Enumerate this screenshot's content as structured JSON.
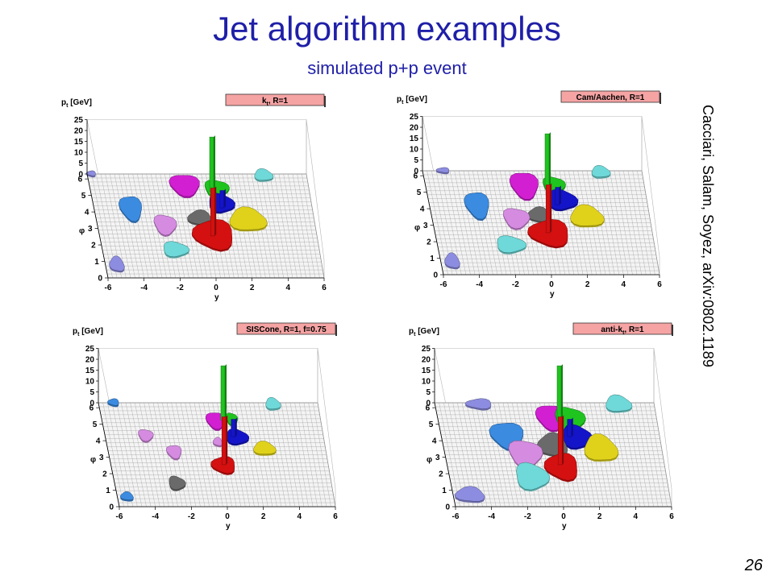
{
  "slide": {
    "title": "Jet algorithm examples",
    "subtitle": "simulated p+p event",
    "citation": "Cacciari, Salam, Soyez, arXiv:0802.1189",
    "page_number": "26"
  },
  "colors": {
    "title": "#1f1fa8",
    "label_box": "#f5a3a3",
    "grid": "#9a9a9a",
    "jets": {
      "magenta": "#d21fd2",
      "green": "#1fc41f",
      "blue": "#1414c8",
      "yellow": "#e0d21a",
      "red": "#d41010",
      "gray": "#6a6a6a",
      "lightblue": "#3b8be0",
      "violet": "#d48be0",
      "cyan": "#6fd8d8",
      "lavender": "#8c8ce0"
    }
  },
  "chart_data": [
    {
      "type": "lego",
      "label": "k",
      "label_sub": "t",
      "label_suffix": ", R=1",
      "xlabel": "y",
      "ylabel": "φ",
      "zlabel": "p",
      "zlabel_sub": "t",
      "zlabel_unit": " [GeV]",
      "x_ticks": [
        "-6",
        "-4",
        "-2",
        "0",
        "2",
        "4",
        "6"
      ],
      "y_ticks": [
        "0",
        "1",
        "2",
        "3",
        "4",
        "5",
        "6"
      ],
      "z_ticks": [
        "0",
        "5",
        "10",
        "15",
        "20",
        "25"
      ],
      "xlim": [
        -6,
        6
      ],
      "ylim": [
        0,
        6.3
      ],
      "zlim": [
        0,
        25
      ],
      "jets": [
        {
          "color": "magenta",
          "y": -0.8,
          "phi": 5.4,
          "w": 1.6,
          "h": 1.3
        },
        {
          "color": "green",
          "y": 0.9,
          "phi": 5.2,
          "w": 1.3,
          "h": 1.0
        },
        {
          "color": "blue",
          "y": 1.0,
          "phi": 4.3,
          "w": 1.4,
          "h": 1.1
        },
        {
          "color": "yellow",
          "y": 2.3,
          "phi": 3.3,
          "w": 2.0,
          "h": 1.4
        },
        {
          "color": "gray",
          "y": -0.3,
          "phi": 3.4,
          "w": 1.3,
          "h": 0.9
        },
        {
          "color": "red",
          "y": 0.3,
          "phi": 2.4,
          "w": 2.2,
          "h": 1.8
        },
        {
          "color": "lightblue",
          "y": -4.0,
          "phi": 4.0,
          "w": 1.2,
          "h": 1.5
        },
        {
          "color": "violet",
          "y": -2.3,
          "phi": 3.0,
          "w": 1.2,
          "h": 1.2
        },
        {
          "color": "cyan",
          "y": -2.0,
          "phi": 1.5,
          "w": 1.4,
          "h": 0.9
        },
        {
          "color": "cyan",
          "y": 3.6,
          "phi": 6.0,
          "w": 1.0,
          "h": 0.7
        },
        {
          "color": "lavender",
          "y": -5.4,
          "phi": 0.6,
          "w": 0.8,
          "h": 0.9
        },
        {
          "color": "lavender",
          "y": -5.8,
          "phi": 6.1,
          "w": 0.5,
          "h": 0.3
        }
      ],
      "towers": [
        {
          "color": "green",
          "y": 0.6,
          "phi": 5.0,
          "pt": 25
        },
        {
          "color": "red",
          "y": 0.2,
          "phi": 2.3,
          "pt": 22
        },
        {
          "color": "blue",
          "y": 1.0,
          "phi": 4.0,
          "pt": 8
        }
      ]
    },
    {
      "type": "lego",
      "label": "Cam/Aachen, R=1",
      "label_sub": "",
      "label_suffix": "",
      "xlabel": "y",
      "ylabel": "φ",
      "zlabel": "p",
      "zlabel_sub": "t",
      "zlabel_unit": " [GeV]",
      "x_ticks": [
        "-6",
        "-4",
        "-2",
        "0",
        "2",
        "4",
        "6"
      ],
      "y_ticks": [
        "0",
        "1",
        "2",
        "3",
        "4",
        "5",
        "6"
      ],
      "z_ticks": [
        "0",
        "5",
        "10",
        "15",
        "20",
        "25"
      ],
      "xlim": [
        -6,
        6
      ],
      "ylim": [
        0,
        6.3
      ],
      "zlim": [
        0,
        25
      ],
      "jets": [
        {
          "color": "magenta",
          "y": -0.6,
          "phi": 5.2,
          "w": 1.5,
          "h": 1.6
        },
        {
          "color": "green",
          "y": 1.0,
          "phi": 5.2,
          "w": 1.2,
          "h": 1.0
        },
        {
          "color": "blue",
          "y": 1.3,
          "phi": 4.3,
          "w": 1.6,
          "h": 1.2
        },
        {
          "color": "yellow",
          "y": 2.5,
          "phi": 3.3,
          "w": 1.8,
          "h": 1.3
        },
        {
          "color": "gray",
          "y": -0.1,
          "phi": 3.4,
          "w": 1.2,
          "h": 0.9
        },
        {
          "color": "red",
          "y": 0.3,
          "phi": 2.3,
          "w": 2.2,
          "h": 1.6
        },
        {
          "color": "lightblue",
          "y": -3.4,
          "phi": 4.0,
          "w": 1.3,
          "h": 1.6
        },
        {
          "color": "violet",
          "y": -1.4,
          "phi": 3.2,
          "w": 1.4,
          "h": 1.2
        },
        {
          "color": "cyan",
          "y": -2.0,
          "phi": 1.6,
          "w": 1.6,
          "h": 1.0
        },
        {
          "color": "cyan",
          "y": 3.7,
          "phi": 6.0,
          "w": 1.0,
          "h": 0.7
        },
        {
          "color": "lavender",
          "y": -5.4,
          "phi": 0.6,
          "w": 0.8,
          "h": 0.9
        },
        {
          "color": "lavender",
          "y": -4.9,
          "phi": 6.1,
          "w": 0.7,
          "h": 0.3
        }
      ],
      "towers": [
        {
          "color": "green",
          "y": 0.6,
          "phi": 5.0,
          "pt": 25
        },
        {
          "color": "red",
          "y": 0.2,
          "phi": 2.3,
          "pt": 22
        },
        {
          "color": "blue",
          "y": 1.0,
          "phi": 4.0,
          "pt": 8
        }
      ]
    },
    {
      "type": "lego",
      "label": "SISCone, R=1, f=0.75",
      "label_sub": "",
      "label_suffix": "",
      "xlabel": "y",
      "ylabel": "φ",
      "zlabel": "p",
      "zlabel_sub": "t",
      "zlabel_unit": " [GeV]",
      "x_ticks": [
        "-6",
        "-4",
        "-2",
        "0",
        "2",
        "4",
        "6"
      ],
      "y_ticks": [
        "0",
        "1",
        "2",
        "3",
        "4",
        "5",
        "6"
      ],
      "z_ticks": [
        "0",
        "5",
        "10",
        "15",
        "20",
        "25"
      ],
      "xlim": [
        -6,
        6
      ],
      "ylim": [
        0,
        6.3
      ],
      "zlim": [
        0,
        25
      ],
      "jets": [
        {
          "color": "magenta",
          "y": 0.2,
          "phi": 5.0,
          "w": 1.0,
          "h": 1.0
        },
        {
          "color": "green",
          "y": 1.1,
          "phi": 5.1,
          "w": 0.6,
          "h": 0.7
        },
        {
          "color": "blue",
          "y": 1.2,
          "phi": 4.0,
          "w": 1.2,
          "h": 0.9
        },
        {
          "color": "yellow",
          "y": 2.6,
          "phi": 3.3,
          "w": 1.2,
          "h": 0.8
        },
        {
          "color": "violet",
          "y": 0.1,
          "phi": 3.7,
          "w": 0.5,
          "h": 0.5
        },
        {
          "color": "red",
          "y": 0.2,
          "phi": 2.3,
          "w": 1.3,
          "h": 1.0
        },
        {
          "color": "violet",
          "y": -2.4,
          "phi": 3.1,
          "w": 0.8,
          "h": 0.8
        },
        {
          "color": "violet",
          "y": -3.8,
          "phi": 4.1,
          "w": 0.8,
          "h": 0.7
        },
        {
          "color": "gray",
          "y": -2.6,
          "phi": 1.2,
          "w": 0.9,
          "h": 0.8
        },
        {
          "color": "cyan",
          "y": 3.5,
          "phi": 6.0,
          "w": 0.8,
          "h": 0.7
        },
        {
          "color": "lightblue",
          "y": -5.5,
          "phi": 0.4,
          "w": 0.7,
          "h": 0.5
        },
        {
          "color": "lightblue",
          "y": -5.2,
          "phi": 6.1,
          "w": 0.6,
          "h": 0.4
        }
      ],
      "towers": [
        {
          "color": "green",
          "y": 0.6,
          "phi": 5.0,
          "pt": 25
        },
        {
          "color": "red",
          "y": 0.2,
          "phi": 2.3,
          "pt": 22
        },
        {
          "color": "blue",
          "y": 1.0,
          "phi": 4.0,
          "pt": 8
        }
      ]
    },
    {
      "type": "lego",
      "label": "anti-k",
      "label_sub": "t",
      "label_suffix": ", R=1",
      "xlabel": "y",
      "ylabel": "φ",
      "zlabel": "p",
      "zlabel_sub": "t",
      "zlabel_unit": " [GeV]",
      "x_ticks": [
        "-6",
        "-4",
        "-2",
        "0",
        "2",
        "4",
        "6"
      ],
      "y_ticks": [
        "0",
        "1",
        "2",
        "3",
        "4",
        "5",
        "6"
      ],
      "z_ticks": [
        "0",
        "5",
        "10",
        "15",
        "20",
        "25"
      ],
      "xlim": [
        -6,
        6
      ],
      "ylim": [
        0,
        6.3
      ],
      "zlim": [
        0,
        25
      ],
      "jets": [
        {
          "color": "magenta",
          "y": 0.2,
          "phi": 5.2,
          "w": 1.6,
          "h": 1.5
        },
        {
          "color": "green",
          "y": 1.2,
          "phi": 5.1,
          "w": 1.6,
          "h": 1.4
        },
        {
          "color": "blue",
          "y": 1.4,
          "phi": 4.0,
          "w": 1.6,
          "h": 1.4
        },
        {
          "color": "yellow",
          "y": 2.6,
          "phi": 3.3,
          "w": 1.8,
          "h": 1.6
        },
        {
          "color": "gray",
          "y": 0.0,
          "phi": 3.5,
          "w": 1.6,
          "h": 1.4
        },
        {
          "color": "red",
          "y": 0.3,
          "phi": 2.2,
          "w": 1.8,
          "h": 1.6
        },
        {
          "color": "lightblue",
          "y": -2.4,
          "phi": 4.1,
          "w": 1.8,
          "h": 1.6
        },
        {
          "color": "violet",
          "y": -1.6,
          "phi": 3.0,
          "w": 1.8,
          "h": 1.6
        },
        {
          "color": "cyan",
          "y": -1.5,
          "phi": 1.6,
          "w": 1.8,
          "h": 1.6
        },
        {
          "color": "cyan",
          "y": 4.0,
          "phi": 6.0,
          "w": 1.4,
          "h": 1.0
        },
        {
          "color": "lavender",
          "y": -5.1,
          "phi": 0.5,
          "w": 1.6,
          "h": 0.9
        },
        {
          "color": "lavender",
          "y": -3.6,
          "phi": 6.0,
          "w": 1.4,
          "h": 0.6
        }
      ],
      "towers": [
        {
          "color": "green",
          "y": 0.6,
          "phi": 5.0,
          "pt": 25
        },
        {
          "color": "red",
          "y": 0.2,
          "phi": 2.3,
          "pt": 22
        },
        {
          "color": "blue",
          "y": 1.0,
          "phi": 4.0,
          "pt": 8
        }
      ]
    }
  ]
}
